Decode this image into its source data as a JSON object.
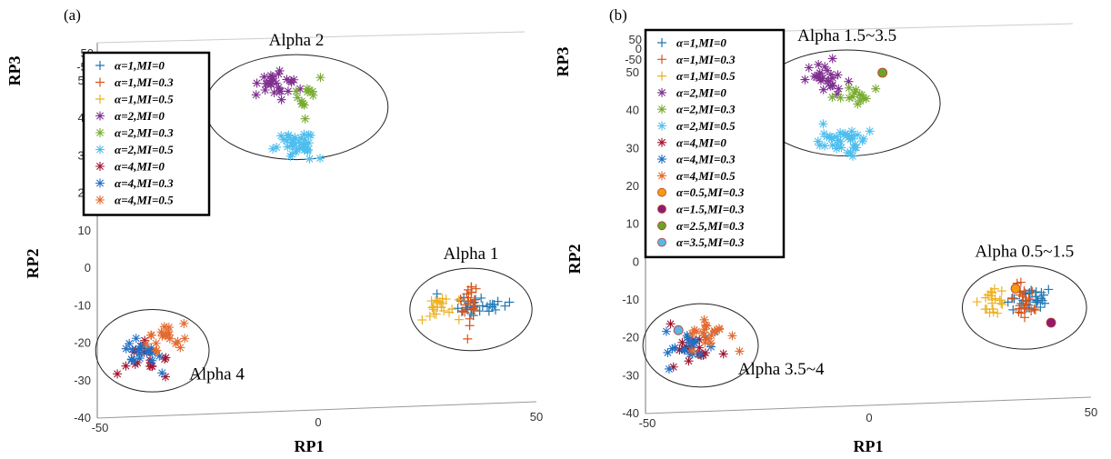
{
  "chart_data": [
    {
      "type": "scatter",
      "panel_label": "(a)",
      "xlabel": "RP1",
      "ylabel": "RP2",
      "zlabel": "RP3",
      "x_ticks": [
        "-50",
        "0",
        "50"
      ],
      "y_ticks": [
        "-40",
        "-30",
        "-20",
        "-10",
        "0",
        "10",
        "20",
        "30",
        "40",
        "50"
      ],
      "z_ticks": [
        "50",
        "-50"
      ],
      "xlim": [
        -50,
        50
      ],
      "ylim": [
        -40,
        55
      ],
      "legend_position": "top-left",
      "legend": [
        {
          "label": "α=1,MI=0",
          "color": "#1f77b4",
          "marker": "plus"
        },
        {
          "label": "α=1,MI=0.3",
          "color": "#d9541a",
          "marker": "plus"
        },
        {
          "label": "α=1,MI=0.5",
          "color": "#edb120",
          "marker": "plus"
        },
        {
          "label": "α=2,MI=0",
          "color": "#7e2f8e",
          "marker": "star"
        },
        {
          "label": "α=2,MI=0.3",
          "color": "#77ac30",
          "marker": "star"
        },
        {
          "label": "α=2,MI=0.5",
          "color": "#4dbeee",
          "marker": "star"
        },
        {
          "label": "α=4,MI=0",
          "color": "#a2142f",
          "marker": "star"
        },
        {
          "label": "α=4,MI=0.3",
          "color": "#1f6fc4",
          "marker": "star"
        },
        {
          "label": "α=4,MI=0.5",
          "color": "#e36a2e",
          "marker": "star"
        }
      ],
      "clusters": [
        {
          "label": "Alpha 2",
          "center": [
            -5,
            43
          ],
          "radius": [
            21,
            14
          ]
        },
        {
          "label": "Alpha 1",
          "center": [
            35,
            -11
          ],
          "radius": [
            14,
            11
          ]
        },
        {
          "label": "Alpha 4",
          "center": [
            -38,
            -22
          ],
          "radius": [
            13,
            11
          ]
        }
      ],
      "series": [
        {
          "name": "α=1,MI=0",
          "color": "#1f77b4",
          "marker": "plus",
          "center": [
            37,
            -10
          ],
          "spread": [
            5,
            2.5
          ],
          "n": 30
        },
        {
          "name": "α=1,MI=0.3",
          "color": "#d9541a",
          "marker": "plus",
          "center": [
            35,
            -10
          ],
          "spread": [
            2,
            6
          ],
          "n": 22
        },
        {
          "name": "α=1,MI=0.5",
          "color": "#edb120",
          "marker": "plus",
          "center": [
            28,
            -10
          ],
          "spread": [
            3,
            3
          ],
          "n": 22
        },
        {
          "name": "α=2,MI=0",
          "color": "#7e2f8e",
          "marker": "star",
          "center": [
            -10,
            49
          ],
          "spread": [
            4,
            3.5
          ],
          "n": 26
        },
        {
          "name": "α=2,MI=0.3",
          "color": "#77ac30",
          "marker": "star",
          "center": [
            -3,
            45
          ],
          "spread": [
            3.5,
            3
          ],
          "n": 14
        },
        {
          "name": "α=2,MI=0.5",
          "color": "#4dbeee",
          "marker": "star",
          "center": [
            -5,
            33
          ],
          "spread": [
            3.5,
            3
          ],
          "n": 36
        },
        {
          "name": "α=4,MI=0",
          "color": "#a2142f",
          "marker": "star",
          "center": [
            -39,
            -24
          ],
          "spread": [
            4,
            4
          ],
          "n": 18
        },
        {
          "name": "α=4,MI=0.3",
          "color": "#1f6fc4",
          "marker": "star",
          "center": [
            -40,
            -23
          ],
          "spread": [
            5,
            4
          ],
          "n": 20
        },
        {
          "name": "α=4,MI=0.5",
          "color": "#e36a2e",
          "marker": "star",
          "center": [
            -36,
            -19
          ],
          "spread": [
            4,
            3.5
          ],
          "n": 20
        }
      ],
      "highlights": []
    },
    {
      "type": "scatter",
      "panel_label": "(b)",
      "xlabel": "RP1",
      "ylabel": "RP2",
      "zlabel": "RP3",
      "x_ticks": [
        "-50",
        "0",
        "50"
      ],
      "y_ticks": [
        "-40",
        "-30",
        "-20",
        "-10",
        "0",
        "10",
        "20",
        "30",
        "40",
        "50"
      ],
      "z_ticks": [
        "50",
        "0",
        "-50"
      ],
      "xlim": [
        -50,
        50
      ],
      "ylim": [
        -40,
        55
      ],
      "legend_position": "top-left",
      "legend": [
        {
          "label": "α=1,MI=0",
          "color": "#1f77b4",
          "marker": "plus"
        },
        {
          "label": "α=1,MI=0.3",
          "color": "#d9541a",
          "marker": "plus"
        },
        {
          "label": "α=1,MI=0.5",
          "color": "#edb120",
          "marker": "plus"
        },
        {
          "label": "α=2,MI=0",
          "color": "#7e2f8e",
          "marker": "star"
        },
        {
          "label": "α=2,MI=0.3",
          "color": "#77ac30",
          "marker": "star"
        },
        {
          "label": "α=2,MI=0.5",
          "color": "#4dbeee",
          "marker": "star"
        },
        {
          "label": "α=4,MI=0",
          "color": "#a2142f",
          "marker": "star"
        },
        {
          "label": "α=4,MI=0.3",
          "color": "#1f6fc4",
          "marker": "star"
        },
        {
          "label": "α=4,MI=0.5",
          "color": "#e36a2e",
          "marker": "star"
        },
        {
          "label": "α=0.5,MI=0.3",
          "color": "#f39c12",
          "marker": "circle"
        },
        {
          "label": "α=1.5,MI=0.3",
          "color": "#8e1b6e",
          "marker": "circle"
        },
        {
          "label": "α=2.5,MI=0.3",
          "color": "#6aa329",
          "marker": "circle"
        },
        {
          "label": "α=3.5,MI=0.3",
          "color": "#58b8e8",
          "marker": "circle"
        }
      ],
      "clusters": [
        {
          "label": "Alpha 1.5~3.5",
          "center": [
            -5,
            42
          ],
          "radius": [
            21,
            14
          ]
        },
        {
          "label": "Alpha 0.5~1.5",
          "center": [
            35,
            -12
          ],
          "radius": [
            14,
            11
          ]
        },
        {
          "label": "Alpha 3.5~4",
          "center": [
            -38,
            -22
          ],
          "radius": [
            13,
            11
          ]
        }
      ],
      "series": [
        {
          "name": "α=1,MI=0",
          "color": "#1f77b4",
          "marker": "plus",
          "center": [
            37,
            -10
          ],
          "spread": [
            5,
            2.5
          ],
          "n": 30
        },
        {
          "name": "α=1,MI=0.3",
          "color": "#d9541a",
          "marker": "plus",
          "center": [
            35,
            -11
          ],
          "spread": [
            2,
            6
          ],
          "n": 22
        },
        {
          "name": "α=1,MI=0.5",
          "color": "#edb120",
          "marker": "plus",
          "center": [
            28,
            -10
          ],
          "spread": [
            3,
            3
          ],
          "n": 22
        },
        {
          "name": "α=2,MI=0",
          "color": "#7e2f8e",
          "marker": "star",
          "center": [
            -10,
            48
          ],
          "spread": [
            4,
            3.5
          ],
          "n": 26
        },
        {
          "name": "α=2,MI=0.3",
          "color": "#77ac30",
          "marker": "star",
          "center": [
            -3,
            45
          ],
          "spread": [
            3.5,
            3
          ],
          "n": 14
        },
        {
          "name": "α=2,MI=0.5",
          "color": "#4dbeee",
          "marker": "star",
          "center": [
            -5,
            32
          ],
          "spread": [
            3.5,
            3
          ],
          "n": 36
        },
        {
          "name": "α=4,MI=0",
          "color": "#a2142f",
          "marker": "star",
          "center": [
            -39,
            -24
          ],
          "spread": [
            4,
            4
          ],
          "n": 18
        },
        {
          "name": "α=4,MI=0.3",
          "color": "#1f6fc4",
          "marker": "star",
          "center": [
            -40,
            -23
          ],
          "spread": [
            5,
            4
          ],
          "n": 20
        },
        {
          "name": "α=4,MI=0.5",
          "color": "#e36a2e",
          "marker": "star",
          "center": [
            -36,
            -19
          ],
          "spread": [
            4,
            3.5
          ],
          "n": 20
        }
      ],
      "highlights": [
        {
          "name": "α=0.5,MI=0.3",
          "color": "#f39c12",
          "x": 33,
          "y": -7
        },
        {
          "name": "α=1.5,MI=0.3",
          "color": "#8e1b6e",
          "x": 41,
          "y": -16
        },
        {
          "name": "α=2.5,MI=0.3",
          "color": "#6aa329",
          "x": 3,
          "y": 50
        },
        {
          "name": "α=3.5,MI=0.3",
          "color": "#58b8e8",
          "x": -43,
          "y": -18
        }
      ]
    }
  ]
}
